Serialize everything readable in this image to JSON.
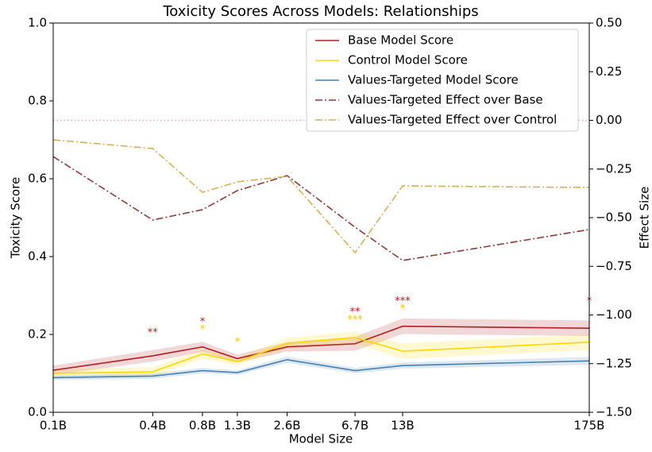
{
  "chart_data": {
    "type": "line",
    "title": "Toxicity Scores Across Models: Relationships",
    "x_label": "Model Size",
    "y_label": "Toxicity Score",
    "y2_label": "Effect Size",
    "x": [
      0.1,
      0.4,
      0.8,
      1.3,
      2.6,
      6.7,
      13,
      175
    ],
    "xlim": [
      0.1,
      175
    ],
    "xscale": "log",
    "xticks": [
      {
        "value": 0.1,
        "label": "0.1B"
      },
      {
        "value": 0.4,
        "label": "0.4B"
      },
      {
        "value": 0.8,
        "label": "0.8B"
      },
      {
        "value": 1.3,
        "label": "1.3B"
      },
      {
        "value": 2.6,
        "label": "2.6B"
      },
      {
        "value": 6.7,
        "label": "6.7B"
      },
      {
        "value": 13,
        "label": "13B"
      },
      {
        "value": 175,
        "label": "175B"
      }
    ],
    "ylim": [
      0,
      1
    ],
    "yticks": [
      {
        "value": 0,
        "label": "0.0"
      },
      0.2,
      0.4,
      0.6,
      0.8,
      {
        "value": 1,
        "label": "1.0"
      }
    ],
    "y2lim": [
      -1.5,
      0.5
    ],
    "y2ticks": [
      {
        "value": 0.5,
        "label": "0.50"
      },
      {
        "value": 0.25,
        "label": "0.25"
      },
      {
        "value": 0,
        "label": "0.00"
      },
      {
        "value": -0.25,
        "label": "−0.25"
      },
      {
        "value": -0.5,
        "label": "−0.50"
      },
      {
        "value": -0.75,
        "label": "−0.75"
      },
      {
        "value": -1,
        "label": "−1.00"
      },
      {
        "value": -1.25,
        "label": "−1.25"
      },
      {
        "value": -1.5,
        "label": "−1.50"
      }
    ],
    "legend": "upper right",
    "series": [
      {
        "name": "Base Model Score",
        "color": "#b22222",
        "linestyle": "solid",
        "values": [
          0.108,
          0.145,
          0.168,
          0.138,
          0.168,
          0.176,
          0.221,
          0.216
        ],
        "error": [
          0.012,
          0.015,
          0.013,
          0.01,
          0.012,
          0.018,
          0.02,
          0.02
        ]
      },
      {
        "name": "Control Model Score",
        "color": "#ffd700",
        "linestyle": "solid",
        "values": [
          0.1,
          0.104,
          0.15,
          0.13,
          0.177,
          0.192,
          0.157,
          0.18
        ],
        "error": [
          0.01,
          0.012,
          0.012,
          0.01,
          0.014,
          0.016,
          0.02,
          0.02
        ]
      },
      {
        "name": "Values-Targeted Model Score",
        "color": "#4682b4",
        "linestyle": "solid",
        "values": [
          0.089,
          0.093,
          0.107,
          0.102,
          0.135,
          0.107,
          0.12,
          0.132
        ],
        "error": [
          0.006,
          0.007,
          0.007,
          0.006,
          0.008,
          0.007,
          0.008,
          0.01
        ]
      },
      {
        "name": "Values-Targeted Effect over Base",
        "color": "#8b3a3a",
        "linestyle": "dashdot",
        "axis": "y2",
        "values": [
          -0.186,
          -0.512,
          -0.459,
          -0.361,
          -0.284,
          -0.549,
          -0.72,
          -0.561
        ]
      },
      {
        "name": "Values-Targeted Effect over Control",
        "color": "#d4b05a",
        "linestyle": "dashdot",
        "axis": "y2",
        "values": [
          -0.1,
          -0.145,
          -0.37,
          -0.316,
          -0.288,
          -0.68,
          -0.337,
          -0.345
        ]
      }
    ],
    "reference_line": {
      "value": 0,
      "axis": "y2",
      "color": "#f4a0a0"
    },
    "annotations": [
      {
        "text": "**",
        "x": 0.4,
        "y": 0.204,
        "color": "#b22222"
      },
      {
        "text": "*",
        "x": 0.8,
        "y": 0.232,
        "color": "#b22222"
      },
      {
        "text": "*",
        "x": 0.8,
        "y": 0.212,
        "color": "#f5c400"
      },
      {
        "text": "*",
        "x": 1.3,
        "y": 0.18,
        "color": "#f5c400"
      },
      {
        "text": "**",
        "x": 6.7,
        "y": 0.257,
        "color": "#b22222"
      },
      {
        "text": "***",
        "x": 6.7,
        "y": 0.237,
        "color": "#f5c400"
      },
      {
        "text": "***",
        "x": 13,
        "y": 0.285,
        "color": "#b22222"
      },
      {
        "text": "*",
        "x": 13,
        "y": 0.265,
        "color": "#f5c400"
      },
      {
        "text": "*",
        "x": 175,
        "y": 0.285,
        "color": "#b22222"
      }
    ]
  }
}
